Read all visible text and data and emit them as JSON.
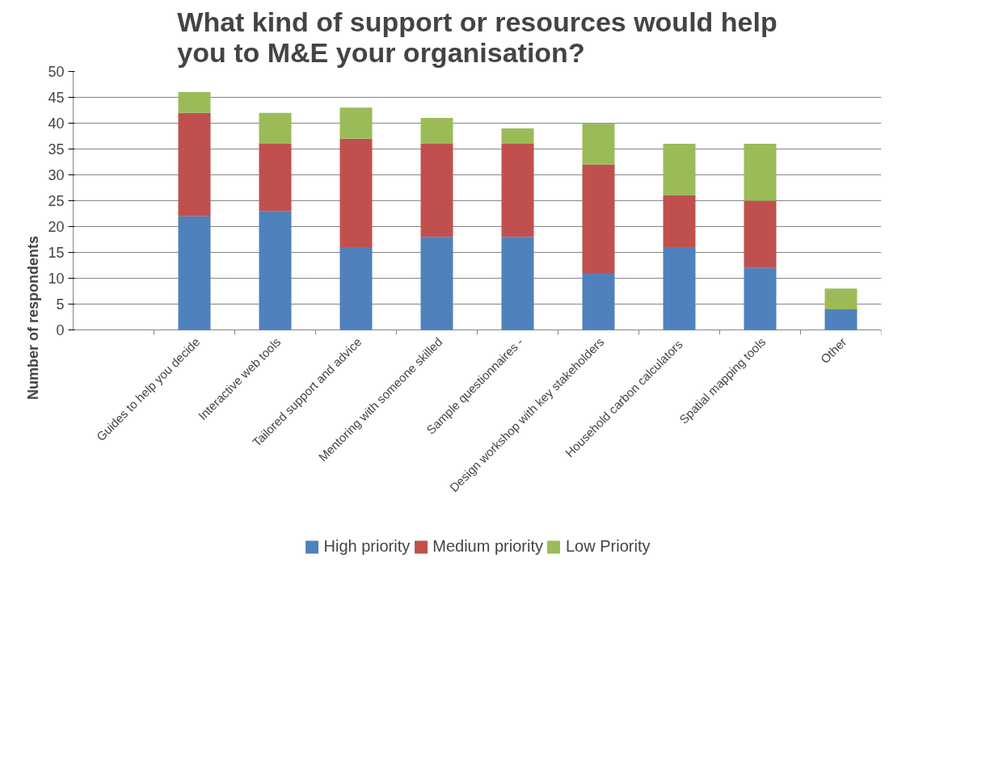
{
  "chart_data": {
    "type": "bar",
    "stacked": true,
    "title": "What kind of support or resources would help\nyou to M&E your organisation?",
    "ylabel": "Number of respondents",
    "categories": [
      "Guides to help you decide",
      "Interactive web tools",
      "Tailored support and advice",
      "Mentoring with someone skilled",
      "Sample questionnaires -",
      "Design workshop with key stakeholders",
      "Household  carbon calculators",
      "Spatial mapping tools",
      "Other"
    ],
    "series": [
      {
        "name": "High priority",
        "color": "#4f81bd",
        "values": [
          22,
          23,
          16,
          18,
          18,
          11,
          16,
          12,
          4
        ]
      },
      {
        "name": "Medium priority",
        "color": "#c0504d",
        "values": [
          20,
          13,
          21,
          18,
          18,
          21,
          10,
          13,
          0
        ]
      },
      {
        "name": "Low Priority",
        "color": "#9bbb59",
        "values": [
          4,
          6,
          6,
          5,
          3,
          8,
          10,
          11,
          4
        ]
      }
    ],
    "ylim": [
      0,
      50
    ],
    "yticks": [
      0,
      5,
      10,
      15,
      20,
      25,
      30,
      35,
      40,
      45,
      50
    ],
    "grid": "y",
    "legend": "bottom"
  }
}
